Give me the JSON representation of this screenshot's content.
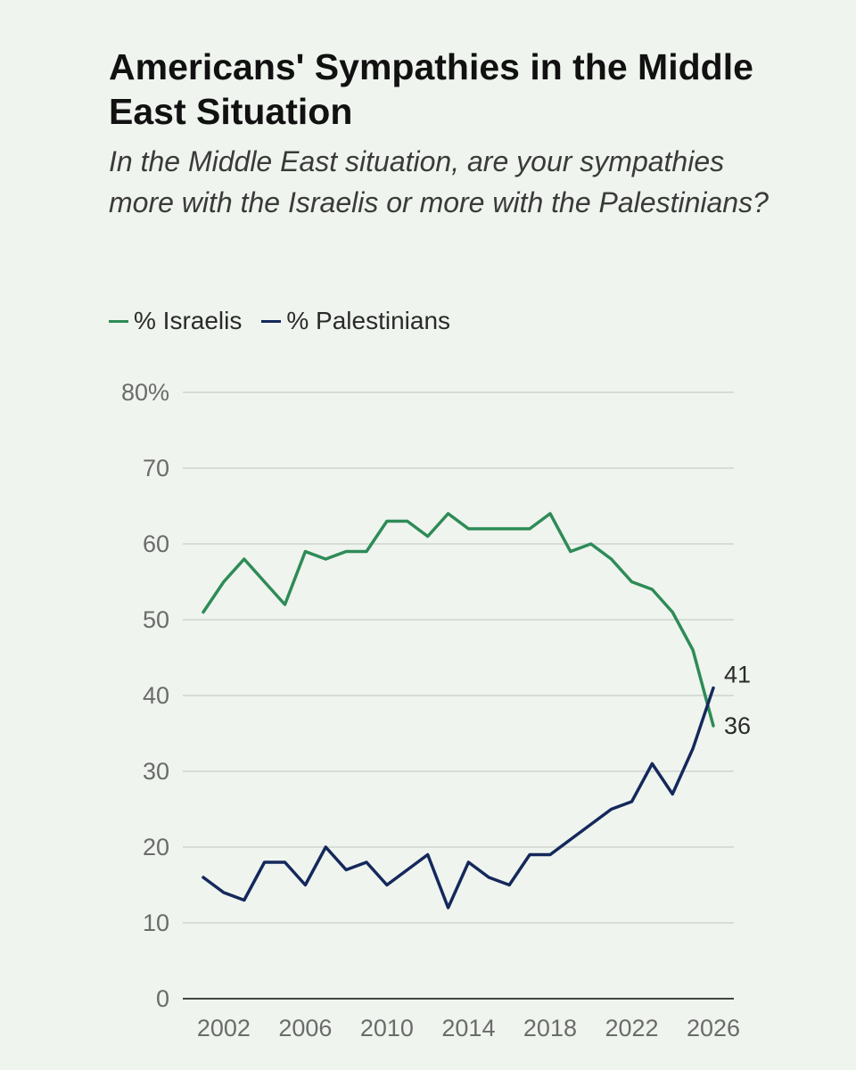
{
  "chart_data": {
    "type": "line",
    "title": "Americans' Sympathies in the Middle East Situation",
    "subtitle": "In the Middle East situation, are your sympathies more with the Israelis or more with the Palestinians?",
    "x": [
      2001,
      2002,
      2003,
      2004,
      2005,
      2006,
      2007,
      2008,
      2009,
      2010,
      2011,
      2012,
      2013,
      2014,
      2015,
      2016,
      2017,
      2018,
      2019,
      2020,
      2021,
      2022,
      2023,
      2024,
      2025,
      2026
    ],
    "series": [
      {
        "name": "% Israelis",
        "color": "#2e8b57",
        "values": [
          51,
          55,
          58,
          55,
          52,
          59,
          58,
          59,
          59,
          63,
          63,
          61,
          64,
          62,
          62,
          62,
          62,
          64,
          59,
          60,
          58,
          55,
          54,
          51,
          46,
          36
        ]
      },
      {
        "name": "% Palestinians",
        "color": "#14285c",
        "values": [
          16,
          14,
          13,
          18,
          18,
          15,
          20,
          17,
          18,
          15,
          17,
          19,
          12,
          18,
          16,
          15,
          19,
          19,
          21,
          23,
          25,
          26,
          31,
          27,
          33,
          41
        ]
      }
    ],
    "ylim": [
      0,
      80
    ],
    "xlim": [
      2001,
      2026
    ],
    "y_ticks": [
      0,
      10,
      20,
      30,
      40,
      50,
      60,
      70,
      80
    ],
    "y_tick_labels": [
      "0",
      "10",
      "20",
      "30",
      "40",
      "50",
      "60",
      "70",
      "80%"
    ],
    "x_ticks": [
      2002,
      2006,
      2010,
      2014,
      2018,
      2022,
      2026
    ],
    "x_tick_labels": [
      "2002",
      "2006",
      "2010",
      "2014",
      "2018",
      "2022",
      "2026"
    ],
    "end_labels": [
      "36",
      "41"
    ],
    "xlabel": "",
    "ylabel": "",
    "grid": true,
    "legend": "top-left"
  }
}
